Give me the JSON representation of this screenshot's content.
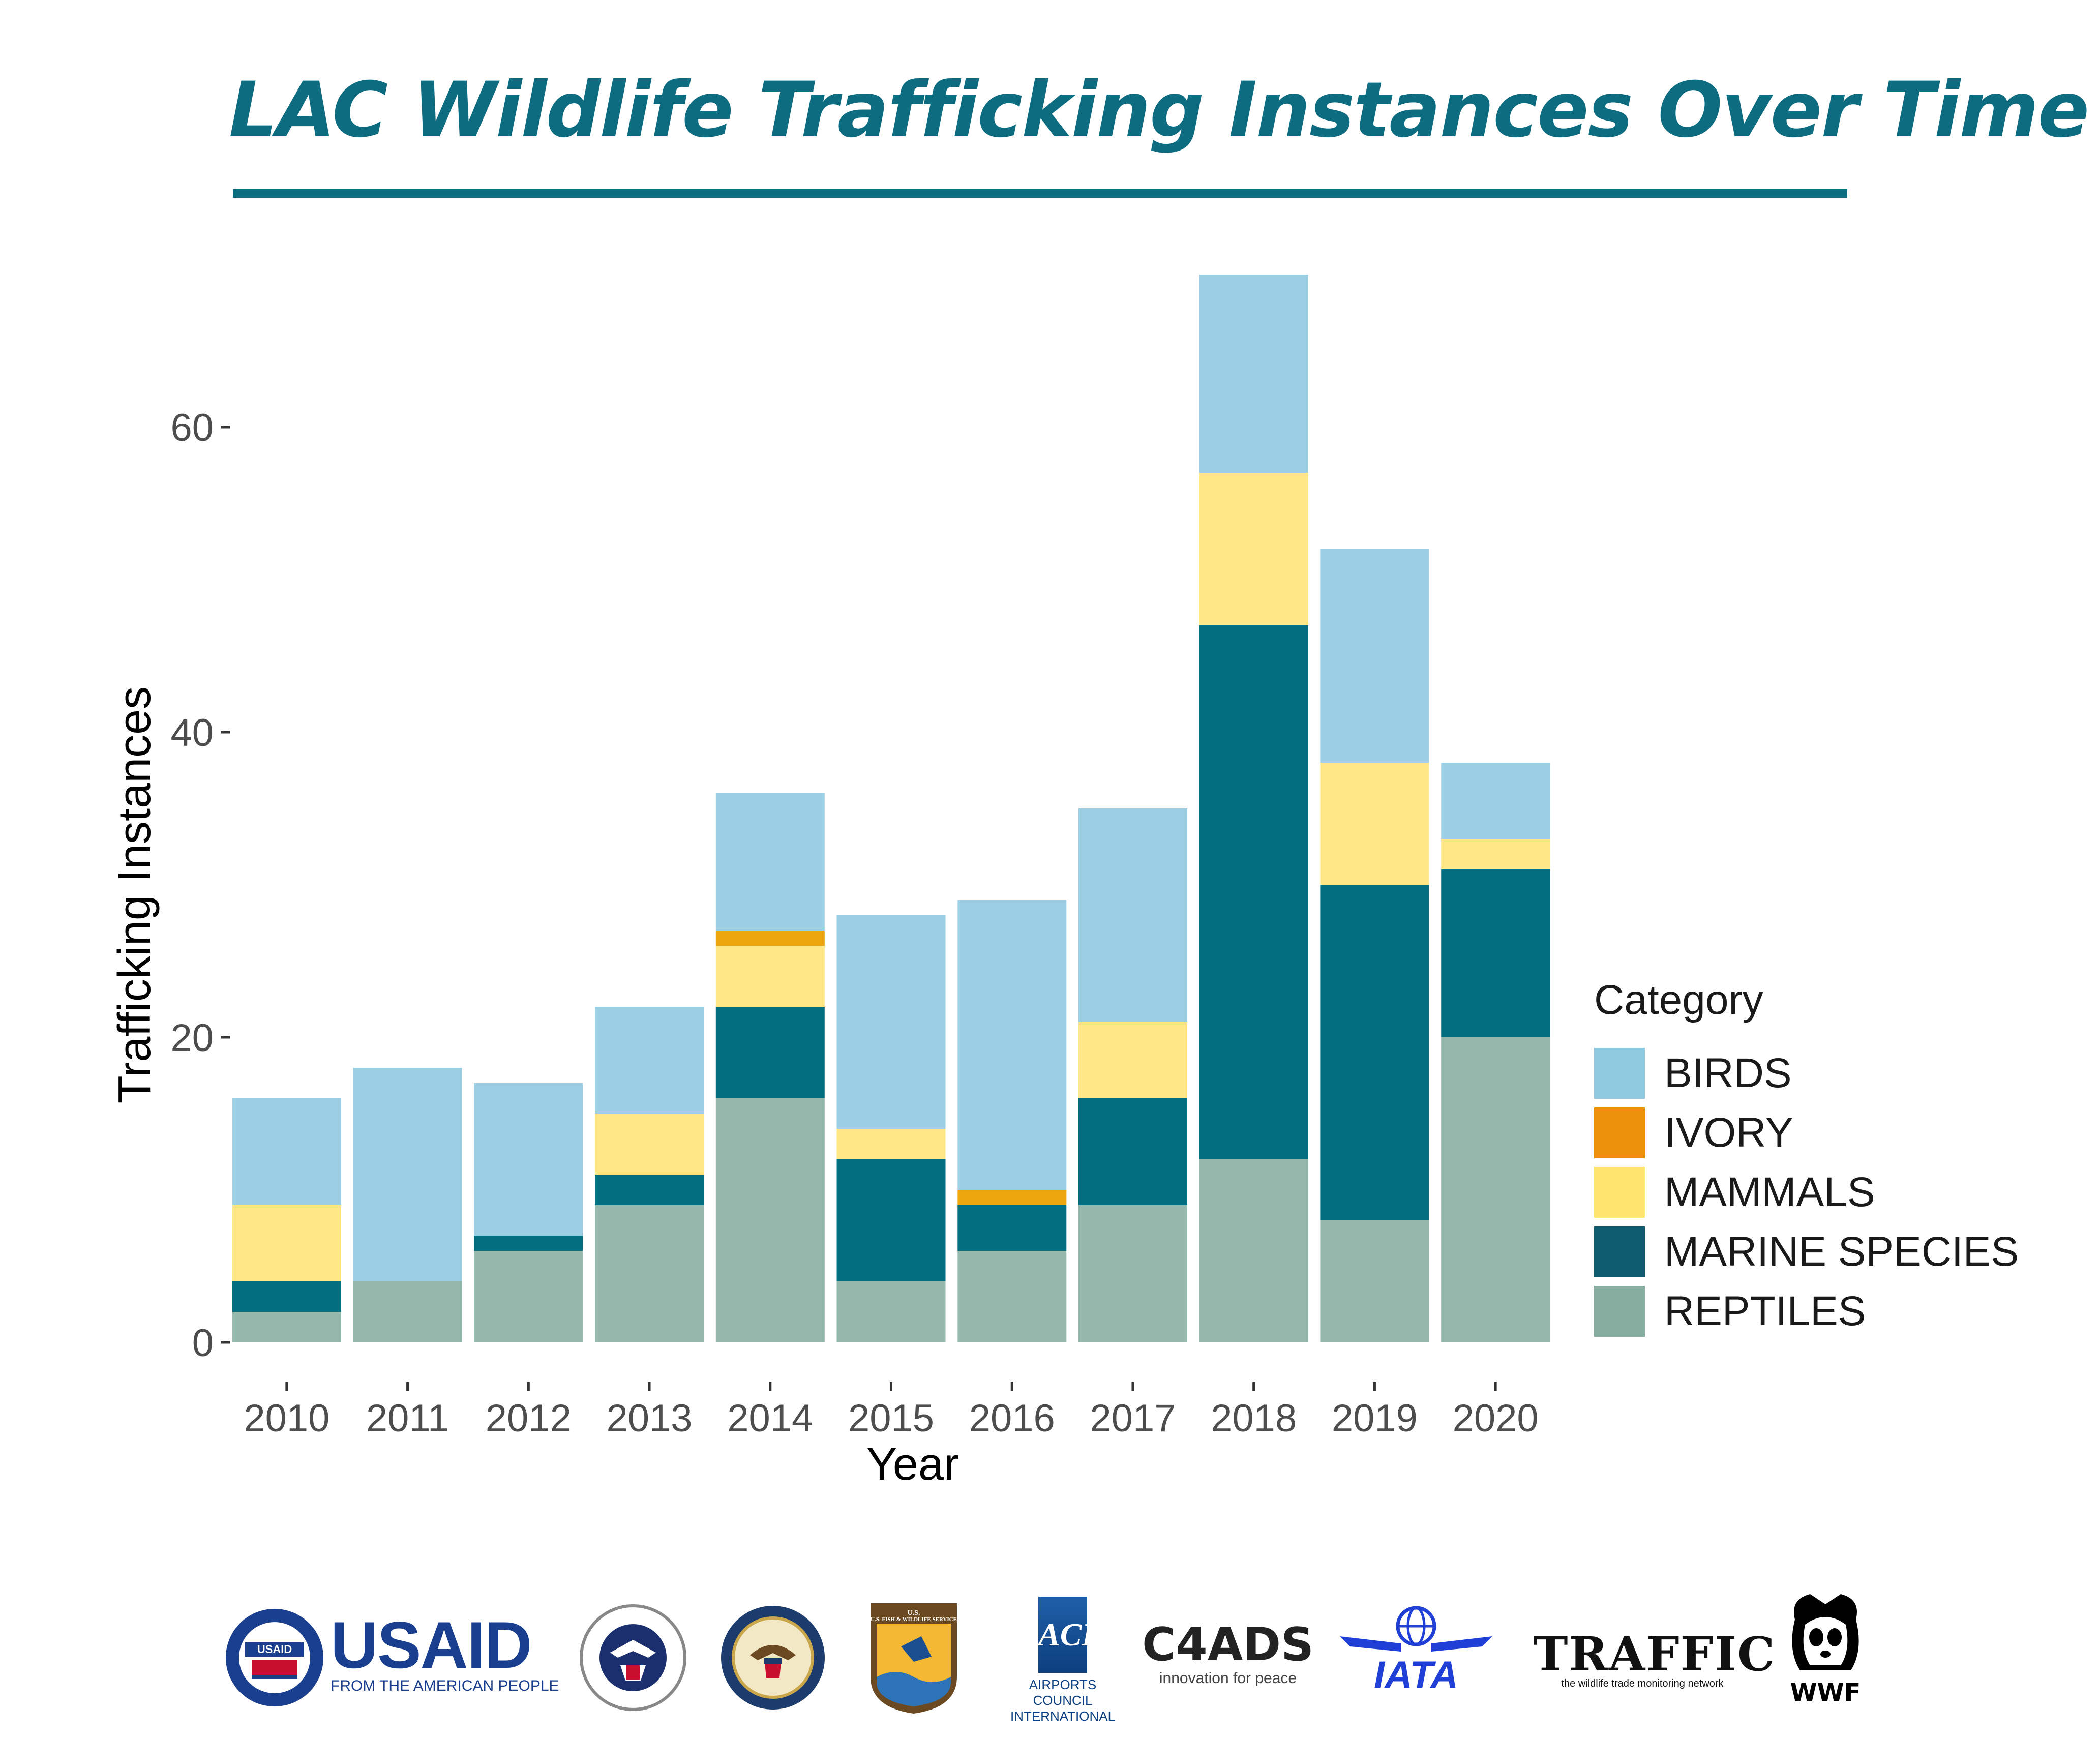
{
  "title": "LAC Wildlife Trafficking Instances Over Time",
  "chart_data": {
    "type": "bar",
    "stacked": true,
    "categories": [
      "2010",
      "2011",
      "2012",
      "2013",
      "2014",
      "2015",
      "2016",
      "2017",
      "2018",
      "2019",
      "2020"
    ],
    "series": [
      {
        "name": "REPTILES",
        "color": "#95b8ad",
        "values": [
          2,
          4,
          6,
          9,
          16,
          4,
          6,
          9,
          12,
          8,
          20
        ]
      },
      {
        "name": "MARINE SPECIES",
        "color": "#016f80",
        "values": [
          2,
          0,
          1,
          2,
          6,
          8,
          3,
          7,
          35,
          22,
          11
        ]
      },
      {
        "name": "MAMMALS",
        "color": "#fee784",
        "values": [
          5,
          0,
          0,
          4,
          4,
          2,
          0,
          5,
          10,
          8,
          2
        ]
      },
      {
        "name": "IVORY",
        "color": "#eda70c",
        "values": [
          0,
          0,
          0,
          0,
          1,
          0,
          1,
          0,
          0,
          0,
          0
        ]
      },
      {
        "name": "BIRDS",
        "color": "#9ccfe3",
        "values": [
          7,
          14,
          10,
          7,
          9,
          14,
          19,
          14,
          13,
          14,
          5
        ]
      }
    ],
    "xlabel": "Year",
    "ylabel": "Trafficking Instances",
    "yticks": [
      0,
      20,
      40,
      60
    ],
    "ylim": [
      0,
      70
    ],
    "grid": false,
    "legend_title": "Category",
    "legend_position": "right",
    "legend_order": [
      "BIRDS",
      "IVORY",
      "MAMMALS",
      "MARINE SPECIES",
      "REPTILES"
    ]
  },
  "legend_colors": {
    "BIRDS": "#8ec9e0",
    "IVORY": "#ec8f0b",
    "MAMMALS": "#fee56f",
    "MARINE SPECIES": "#0f5c6e",
    "REPTILES": "#86ab9f"
  },
  "logos": {
    "usaid_main": "USAID",
    "usaid_sub": "FROM THE AMERICAN PEOPLE",
    "usaid_seal": "USAID",
    "dhs_seal_text": "U.S. DEPARTMENT OF HOMELAND SECURITY",
    "state_seal_text": "DEPARTMENT OF STATE · UNITED STATES OF AMERICA",
    "fws_text": "U.S. FISH & WILDLIFE SERVICE",
    "aci_mark": "ACI",
    "aci_text_1": "AIRPORTS COUNCIL",
    "aci_text_2": "INTERNATIONAL",
    "c4ads_main": "C4ADS",
    "c4ads_sub": "innovation for peace",
    "iata": "IATA",
    "traffic_main": "TRAFFIC",
    "traffic_sub": "the wildlife trade monitoring network",
    "wwf": "WWF"
  }
}
